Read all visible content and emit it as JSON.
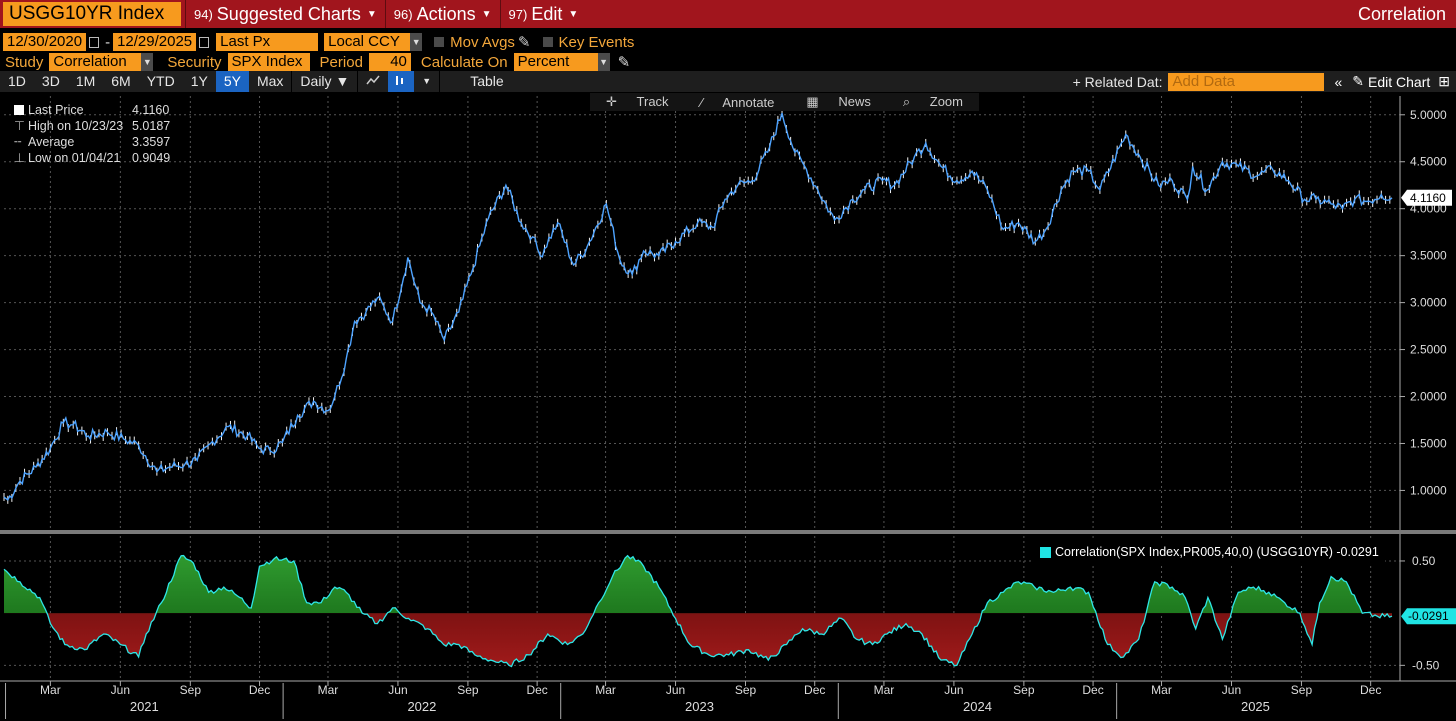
{
  "title_bar": {
    "ticker": "USGG10YR Index",
    "menus": [
      {
        "num": "94)",
        "label": "Suggested Charts"
      },
      {
        "num": "96)",
        "label": "Actions"
      },
      {
        "num": "97)",
        "label": "Edit"
      }
    ],
    "right_label": "Correlation"
  },
  "params": {
    "start_date": "12/30/2020",
    "end_date": "12/29/2025",
    "date_sep": "-",
    "field": "Last Px",
    "currency": "Local CCY",
    "mov_avgs": "Mov Avgs",
    "key_events": "Key Events",
    "study_label": "Study",
    "study_value": "Correlation",
    "security_label": "Security",
    "security_value": "SPX Index",
    "period_label": "Period",
    "period_value": "40",
    "calc_label": "Calculate On",
    "calc_value": "Percent"
  },
  "toolbar": {
    "ranges": [
      "1D",
      "3D",
      "1M",
      "6M",
      "YTD",
      "1Y",
      "5Y",
      "Max"
    ],
    "active_range": "5Y",
    "frequency": "Daily",
    "table_label": "Table",
    "related_data": "+ Related Dat:",
    "add_data_placeholder": "Add Data",
    "edit_chart": "Edit Chart"
  },
  "sub_tools": [
    "Track",
    "Annotate",
    "News",
    "Zoom"
  ],
  "legend": [
    {
      "label": "Last Price",
      "value": "4.1160"
    },
    {
      "label": "High on 10/23/23",
      "value": "5.0187"
    },
    {
      "label": "Average",
      "value": "3.3597"
    },
    {
      "label": "Low on 01/04/21",
      "value": "0.9049"
    }
  ],
  "correlation_legend": "Correlation(SPX Index,PR005,40,0) (USGG10YR) -0.0291",
  "last_price_tag": "4.1160",
  "last_corr_tag": "-0.0291",
  "colors": {
    "title_bar": "#a1151d",
    "field_bg": "#f79a1e",
    "price_line": "#4da3ff",
    "corr_line": "#2ee6e6",
    "positive_fill": "#1f8b1f",
    "negative_fill": "#8b1414"
  },
  "chart_data": [
    {
      "type": "line",
      "title": "",
      "series": [
        {
          "name": "Last Price",
          "x": [
            "2020-12-30",
            "2021-01-04",
            "2021-01-20",
            "2021-02-10",
            "2021-03-01",
            "2021-03-18",
            "2021-03-31",
            "2021-04-20",
            "2021-05-15",
            "2021-06-05",
            "2021-06-25",
            "2021-07-19",
            "2021-08-05",
            "2021-08-25",
            "2021-09-10",
            "2021-09-30",
            "2021-10-21",
            "2021-11-15",
            "2021-11-30",
            "2021-12-15",
            "2021-12-31",
            "2022-01-20",
            "2022-02-10",
            "2022-03-01",
            "2022-03-10",
            "2022-03-25",
            "2022-04-05",
            "2022-04-20",
            "2022-05-05",
            "2022-05-25",
            "2022-06-14",
            "2022-06-30",
            "2022-07-15",
            "2022-08-01",
            "2022-08-20",
            "2022-09-05",
            "2022-09-28",
            "2022-10-21",
            "2022-11-10",
            "2022-11-25",
            "2022-12-05",
            "2022-12-28",
            "2023-01-18",
            "2023-02-05",
            "2023-03-02",
            "2023-03-20",
            "2023-04-05",
            "2023-04-20",
            "2023-05-10",
            "2023-06-01",
            "2023-06-30",
            "2023-07-20",
            "2023-08-05",
            "2023-08-22",
            "2023-09-10",
            "2023-09-30",
            "2023-10-19",
            "2023-11-05",
            "2023-11-20",
            "2023-12-05",
            "2023-12-27",
            "2024-01-20",
            "2024-02-05",
            "2024-02-28",
            "2024-03-15",
            "2024-04-10",
            "2024-04-25",
            "2024-05-15",
            "2024-06-05",
            "2024-06-25",
            "2024-07-15",
            "2024-08-05",
            "2024-08-25",
            "2024-09-16",
            "2024-09-30",
            "2024-10-20",
            "2024-11-05",
            "2024-11-25",
            "2024-12-10",
            "2025-01-13",
            "2025-02-01",
            "2025-02-25",
            "2025-03-15",
            "2025-04-04",
            "2025-04-11",
            "2025-04-30",
            "2025-05-20",
            "2025-06-10",
            "2025-07-05",
            "2025-07-25",
            "2025-08-15",
            "2025-09-05",
            "2025-09-20",
            "2025-10-10",
            "2025-10-25",
            "2025-11-10",
            "2025-11-28",
            "2025-12-15",
            "2025-12-29"
          ],
          "values": [
            0.93,
            0.9,
            1.1,
            1.25,
            1.45,
            1.72,
            1.7,
            1.58,
            1.62,
            1.55,
            1.48,
            1.2,
            1.25,
            1.28,
            1.32,
            1.52,
            1.68,
            1.58,
            1.45,
            1.42,
            1.51,
            1.8,
            1.95,
            1.85,
            2.0,
            2.4,
            2.8,
            2.9,
            3.05,
            2.8,
            3.48,
            3.0,
            2.9,
            2.6,
            2.9,
            3.3,
            3.9,
            4.25,
            3.85,
            3.7,
            3.5,
            3.85,
            3.4,
            3.6,
            4.05,
            3.45,
            3.3,
            3.55,
            3.5,
            3.65,
            3.85,
            3.8,
            4.1,
            4.25,
            4.3,
            4.6,
            5.0187,
            4.6,
            4.42,
            4.2,
            3.88,
            4.1,
            4.2,
            4.3,
            4.25,
            4.55,
            4.7,
            4.45,
            4.3,
            4.4,
            4.2,
            3.78,
            3.85,
            3.65,
            3.78,
            4.2,
            4.4,
            4.4,
            4.2,
            4.79,
            4.55,
            4.25,
            4.3,
            4.1,
            4.45,
            4.2,
            4.5,
            4.45,
            4.35,
            4.42,
            4.3,
            4.1,
            4.1,
            4.05,
            4.0,
            4.1,
            4.08,
            4.15,
            4.116
          ]
        }
      ],
      "ylim": [
        0.6,
        5.2
      ],
      "y_ticks": [
        "1.0000",
        "1.5000",
        "2.0000",
        "2.5000",
        "3.0000",
        "3.5000",
        "4.0000",
        "4.5000",
        "5.0000"
      ],
      "grid": true
    },
    {
      "type": "area",
      "title": "",
      "series": [
        {
          "name": "Correlation(SPX Index,PR005,40,0) (USGG10YR)",
          "x": [
            "2020-12-30",
            "2021-01-20",
            "2021-02-15",
            "2021-03-01",
            "2021-03-20",
            "2021-04-15",
            "2021-05-10",
            "2021-06-01",
            "2021-06-25",
            "2021-07-05",
            "2021-07-25",
            "2021-08-20",
            "2021-09-05",
            "2021-09-25",
            "2021-10-15",
            "2021-11-05",
            "2021-11-20",
            "2021-12-01",
            "2021-12-20",
            "2022-01-15",
            "2022-02-01",
            "2022-02-20",
            "2022-03-10",
            "2022-03-25",
            "2022-04-15",
            "2022-05-05",
            "2022-05-25",
            "2022-06-15",
            "2022-07-10",
            "2022-07-31",
            "2022-08-20",
            "2022-09-10",
            "2022-10-01",
            "2022-10-25",
            "2022-11-20",
            "2022-12-15",
            "2023-01-10",
            "2023-01-30",
            "2023-02-20",
            "2023-03-10",
            "2023-03-30",
            "2023-04-20",
            "2023-05-10",
            "2023-06-01",
            "2023-06-20",
            "2023-07-15",
            "2023-08-10",
            "2023-09-05",
            "2023-10-01",
            "2023-10-25",
            "2023-11-15",
            "2023-12-10",
            "2024-01-05",
            "2024-01-25",
            "2024-02-15",
            "2024-03-05",
            "2024-03-30",
            "2024-04-20",
            "2024-05-15",
            "2024-06-05",
            "2024-06-25",
            "2024-07-15",
            "2024-08-05",
            "2024-08-25",
            "2024-09-15",
            "2024-10-10",
            "2024-11-01",
            "2024-11-25",
            "2024-12-20",
            "2025-01-10",
            "2025-01-30",
            "2025-02-20",
            "2025-03-15",
            "2025-04-01",
            "2025-04-15",
            "2025-05-01",
            "2025-05-20",
            "2025-06-10",
            "2025-06-30",
            "2025-07-20",
            "2025-08-10",
            "2025-08-30",
            "2025-09-15",
            "2025-09-25",
            "2025-10-10",
            "2025-10-30",
            "2025-11-20",
            "2025-12-10",
            "2025-12-29"
          ],
          "values": [
            0.42,
            0.3,
            0.15,
            -0.1,
            -0.3,
            -0.35,
            -0.2,
            -0.3,
            -0.42,
            -0.2,
            0.1,
            0.55,
            0.48,
            0.2,
            0.25,
            0.15,
            0.05,
            0.45,
            0.52,
            0.5,
            0.1,
            0.1,
            0.25,
            0.2,
            0.0,
            -0.1,
            0.05,
            -0.05,
            -0.15,
            -0.3,
            -0.3,
            -0.4,
            -0.45,
            -0.5,
            -0.4,
            -0.2,
            -0.3,
            -0.2,
            0.1,
            0.35,
            0.55,
            0.45,
            0.25,
            -0.05,
            -0.3,
            -0.4,
            -0.4,
            -0.35,
            -0.45,
            -0.3,
            -0.15,
            -0.2,
            -0.05,
            -0.25,
            -0.3,
            -0.2,
            -0.1,
            -0.2,
            -0.45,
            -0.5,
            -0.2,
            0.1,
            0.2,
            0.3,
            0.25,
            0.2,
            0.25,
            0.2,
            -0.3,
            -0.42,
            -0.25,
            0.3,
            0.25,
            0.15,
            -0.15,
            0.15,
            -0.25,
            0.2,
            0.25,
            0.2,
            0.1,
            0.0,
            -0.3,
            0.1,
            0.35,
            0.3,
            0.0,
            -0.03,
            -0.0291
          ]
        }
      ],
      "ylim": [
        -0.65,
        0.72
      ],
      "y_ticks": [
        "0.50",
        "-0.50"
      ],
      "grid": true
    }
  ],
  "x_axis": {
    "months": [
      "Mar",
      "Jun",
      "Sep",
      "Dec",
      "Mar",
      "Jun",
      "Sep",
      "Dec",
      "Mar",
      "Jun",
      "Sep",
      "Dec",
      "Mar",
      "Jun",
      "Sep",
      "Dec",
      "Mar",
      "Jun",
      "Sep",
      "Dec"
    ],
    "years": [
      "2021",
      "2022",
      "2023",
      "2024",
      "2025"
    ]
  }
}
